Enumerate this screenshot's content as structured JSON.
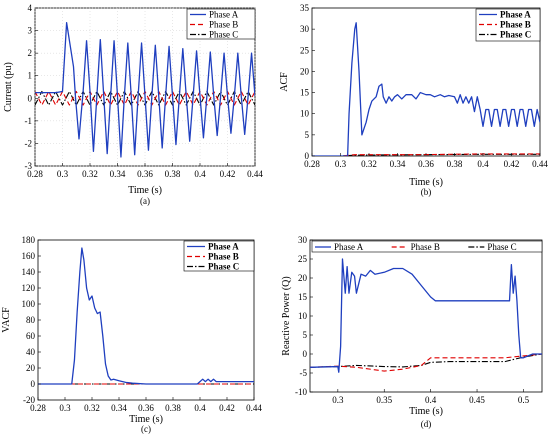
{
  "chart_data": [
    {
      "panel": "(a)",
      "type": "line",
      "xlabel": "Time (s)",
      "ylabel": "Current (pu)",
      "caption": "(a)",
      "xlim": [
        0.28,
        0.44
      ],
      "ylim": [
        -3,
        4
      ],
      "xticks": [
        "0.28",
        "0.3",
        "0.32",
        "0.34",
        "0.36",
        "0.38",
        "0.4",
        "0.42",
        "0.44"
      ],
      "yticks": [
        "-3",
        "-2",
        "-1",
        "0",
        "1",
        "2",
        "3",
        "4"
      ],
      "legend": [
        "Phase A",
        "Phase B",
        "Phase C"
      ],
      "legend_position": "top-right",
      "series": [
        {
          "name": "Phase A",
          "color": "#1f3fbf",
          "style": "solid",
          "x": [
            0.28,
            0.295,
            0.3,
            0.303,
            0.308,
            0.3095,
            0.312,
            0.315,
            0.3175,
            0.32,
            0.3225,
            0.325,
            0.3275,
            0.33,
            0.3325,
            0.335,
            0.3375,
            0.34,
            0.3425,
            0.345,
            0.3475,
            0.35,
            0.3525,
            0.355,
            0.3575,
            0.36,
            0.3625,
            0.365,
            0.3675,
            0.37,
            0.3725,
            0.375,
            0.3775,
            0.38,
            0.3825,
            0.385,
            0.3875,
            0.39,
            0.3925,
            0.395,
            0.3975,
            0.4,
            0.4025,
            0.405,
            0.4075,
            0.41,
            0.4125,
            0.415,
            0.4175,
            0.42,
            0.4225,
            0.425,
            0.4275,
            0.43,
            0.4325,
            0.435,
            0.4375,
            0.44
          ],
          "y": [
            0.25,
            0.25,
            0.3,
            3.35,
            1.4,
            0,
            -1.8,
            0.3,
            2.55,
            0.3,
            -2.35,
            0.1,
            2.6,
            0.1,
            -2.45,
            0.1,
            2.55,
            0.1,
            -2.6,
            0.1,
            2.45,
            0.1,
            -2.5,
            0.1,
            2.45,
            0.1,
            -2.3,
            0.1,
            2.35,
            0.1,
            -2.2,
            0.1,
            2.3,
            0.1,
            -2.05,
            0.1,
            2.2,
            0.1,
            -1.9,
            0.1,
            2.1,
            0.1,
            -1.75,
            0.1,
            2.05,
            0.1,
            -1.65,
            0.1,
            2.0,
            0.1,
            -1.55,
            0.1,
            2.0,
            0.1,
            -1.6,
            0.1,
            2.0,
            0.1
          ]
        },
        {
          "name": "Phase B",
          "color": "#e00000",
          "style": "dashed",
          "x": [
            0.28,
            0.2825,
            0.285,
            0.2875,
            0.29,
            0.2925,
            0.295,
            0.2975,
            0.3,
            0.3025,
            0.305,
            0.3075,
            0.31,
            0.3125,
            0.315,
            0.3175,
            0.32,
            0.3225,
            0.325,
            0.3275,
            0.33,
            0.3325,
            0.335,
            0.3375,
            0.34,
            0.3425,
            0.345,
            0.3475,
            0.35,
            0.3525,
            0.355,
            0.3575,
            0.36,
            0.3625,
            0.365,
            0.3675,
            0.37,
            0.3725,
            0.375,
            0.3775,
            0.38,
            0.3825,
            0.385,
            0.3875,
            0.39,
            0.3925,
            0.395,
            0.3975,
            0.4,
            0.4025,
            0.405,
            0.4075,
            0.41,
            0.4125,
            0.415,
            0.4175,
            0.42,
            0.4225,
            0.425,
            0.4275,
            0.43,
            0.4325,
            0.435,
            0.4375,
            0.44
          ],
          "y": [
            0.3,
            0,
            -0.3,
            0,
            0.3,
            0,
            -0.3,
            0,
            0.3,
            0,
            -0.3,
            0,
            0.3,
            0,
            -0.3,
            0,
            0.3,
            0,
            -0.3,
            0,
            0.3,
            0,
            -0.3,
            0,
            0.3,
            0,
            -0.3,
            0,
            0.3,
            0,
            -0.3,
            0,
            0.3,
            0,
            -0.3,
            0,
            0.3,
            0,
            -0.3,
            0,
            0.3,
            0,
            -0.3,
            0,
            0.3,
            0,
            -0.3,
            0,
            0.3,
            0,
            -0.3,
            0,
            0.3,
            0,
            -0.3,
            0,
            0.3,
            0,
            -0.3,
            0,
            0.3,
            0,
            -0.3,
            0,
            0.3
          ]
        },
        {
          "name": "Phase C",
          "color": "#000000",
          "style": "dashdot",
          "x": [
            0.28,
            0.2825,
            0.285,
            0.2875,
            0.29,
            0.2925,
            0.295,
            0.2975,
            0.3,
            0.3025,
            0.305,
            0.3075,
            0.31,
            0.3125,
            0.315,
            0.3175,
            0.32,
            0.3225,
            0.325,
            0.3275,
            0.33,
            0.3325,
            0.335,
            0.3375,
            0.34,
            0.3425,
            0.345,
            0.3475,
            0.35,
            0.3525,
            0.355,
            0.3575,
            0.36,
            0.3625,
            0.365,
            0.3675,
            0.37,
            0.3725,
            0.375,
            0.3775,
            0.38,
            0.3825,
            0.385,
            0.3875,
            0.39,
            0.3925,
            0.395,
            0.3975,
            0.4,
            0.4025,
            0.405,
            0.4075,
            0.41,
            0.4125,
            0.415,
            0.4175,
            0.42,
            0.4225,
            0.425,
            0.4275,
            0.43,
            0.4325,
            0.435,
            0.4375,
            0.44
          ],
          "y": [
            -0.3,
            0,
            0.3,
            0,
            -0.3,
            0,
            0.3,
            0,
            -0.3,
            0,
            0.3,
            0,
            -0.3,
            0,
            0.3,
            0,
            -0.3,
            0,
            0.3,
            0,
            -0.3,
            0,
            0.3,
            0,
            -0.3,
            0,
            0.3,
            0,
            -0.3,
            0,
            0.3,
            0,
            -0.3,
            0,
            0.3,
            0,
            -0.3,
            0,
            0.3,
            0,
            -0.3,
            0,
            0.3,
            0,
            -0.3,
            0,
            0.3,
            0,
            -0.3,
            0,
            0.3,
            0,
            -0.3,
            0,
            0.3,
            0,
            -0.3,
            0,
            0.3,
            0,
            -0.3,
            0,
            0.3,
            0,
            -0.3
          ]
        }
      ]
    },
    {
      "panel": "(b)",
      "type": "line",
      "xlabel": "Time (s)",
      "ylabel": "ACF",
      "caption": "(b)",
      "xlim": [
        0.28,
        0.44
      ],
      "ylim": [
        0,
        35
      ],
      "xticks": [
        "0.28",
        "0.3",
        "0.32",
        "0.34",
        "0.36",
        "0.38",
        "0.4",
        "0.42",
        "0.44"
      ],
      "yticks": [
        "0",
        "5",
        "10",
        "15",
        "20",
        "25",
        "30",
        "35"
      ],
      "legend": [
        "Phase A",
        "Phase B",
        "Phase C"
      ],
      "legend_position": "top-right",
      "series": [
        {
          "name": "Phase A",
          "color": "#1f3fbf",
          "style": "solid",
          "x": [
            0.28,
            0.305,
            0.306,
            0.308,
            0.31,
            0.311,
            0.313,
            0.315,
            0.318,
            0.32,
            0.322,
            0.325,
            0.327,
            0.329,
            0.33,
            0.332,
            0.334,
            0.336,
            0.338,
            0.34,
            0.343,
            0.346,
            0.35,
            0.353,
            0.356,
            0.36,
            0.363,
            0.366,
            0.37,
            0.373,
            0.376,
            0.38,
            0.382,
            0.384,
            0.386,
            0.388,
            0.39,
            0.392,
            0.394,
            0.396,
            0.398,
            0.4,
            0.402,
            0.404,
            0.406,
            0.408,
            0.41,
            0.412,
            0.414,
            0.416,
            0.418,
            0.42,
            0.422,
            0.424,
            0.426,
            0.428,
            0.43,
            0.432,
            0.434,
            0.436,
            0.438,
            0.44
          ],
          "y": [
            0,
            0,
            10,
            22,
            30,
            31.5,
            20,
            5,
            8,
            11,
            13,
            14,
            16.5,
            17,
            14,
            12.5,
            14,
            13,
            14,
            14.5,
            13.5,
            14.5,
            14.5,
            13.5,
            15,
            14.5,
            14.5,
            14,
            14.5,
            14,
            14.3,
            14,
            12.5,
            14.5,
            12.5,
            14,
            12.5,
            14,
            10.5,
            14,
            11,
            7,
            11,
            11,
            7,
            11,
            11,
            7,
            11,
            11,
            7,
            11,
            11,
            7,
            11,
            11,
            7,
            11,
            11,
            7,
            11,
            8
          ]
        },
        {
          "name": "Phase B",
          "color": "#e00000",
          "style": "dashed",
          "x": [
            0.28,
            0.3,
            0.31,
            0.35,
            0.4,
            0.44
          ],
          "y": [
            0,
            0,
            0.3,
            0.3,
            0.5,
            0.5
          ]
        },
        {
          "name": "Phase C",
          "color": "#000000",
          "style": "dashdot",
          "x": [
            0.28,
            0.3,
            0.31,
            0.35,
            0.4,
            0.44
          ],
          "y": [
            0,
            0,
            0.2,
            0.3,
            0.4,
            0.4
          ]
        }
      ]
    },
    {
      "panel": "(c)",
      "type": "line",
      "xlabel": "Time (s)",
      "ylabel": "VACF",
      "caption": "(c)",
      "xlim": [
        0.28,
        0.44
      ],
      "ylim": [
        -20,
        180
      ],
      "xticks": [
        "0.28",
        "0.3",
        "0.32",
        "0.34",
        "0.36",
        "0.38",
        "0.4",
        "0.42",
        "0.44"
      ],
      "yticks": [
        "-20",
        "0",
        "20",
        "40",
        "60",
        "80",
        "100",
        "120",
        "140",
        "160",
        "180"
      ],
      "legend": [
        "Phase A",
        "Phase B",
        "Phase C"
      ],
      "legend_position": "top-right",
      "series": [
        {
          "name": "Phase A",
          "color": "#1f3fbf",
          "style": "solid",
          "x": [
            0.28,
            0.305,
            0.307,
            0.309,
            0.311,
            0.3125,
            0.314,
            0.316,
            0.318,
            0.32,
            0.322,
            0.324,
            0.326,
            0.328,
            0.33,
            0.332,
            0.334,
            0.336,
            0.338,
            0.34,
            0.345,
            0.35,
            0.36,
            0.38,
            0.398,
            0.4,
            0.402,
            0.404,
            0.406,
            0.408,
            0.41,
            0.412,
            0.415,
            0.42,
            0.44
          ],
          "y": [
            0,
            0,
            30,
            90,
            140,
            170,
            155,
            120,
            105,
            110,
            95,
            88,
            90,
            60,
            25,
            10,
            5,
            6,
            5,
            4,
            2,
            1,
            0,
            0,
            0,
            3,
            6,
            3,
            6,
            3,
            6,
            3,
            3,
            3,
            3
          ]
        },
        {
          "name": "Phase B",
          "color": "#e00000",
          "style": "dashed",
          "x": [
            0.28,
            0.44
          ],
          "y": [
            0,
            0
          ]
        },
        {
          "name": "Phase C",
          "color": "#000000",
          "style": "dashdot",
          "x": [
            0.28,
            0.44
          ],
          "y": [
            0,
            0
          ]
        }
      ]
    },
    {
      "panel": "(d)",
      "type": "line",
      "xlabel": "Time (s)",
      "ylabel": "Reactive Power (Q)",
      "caption": "(d)",
      "xlim": [
        0.27,
        0.52
      ],
      "ylim": [
        -10,
        30
      ],
      "xticks": [
        "0.3",
        "0.35",
        "0.4",
        "0.45",
        "0.5"
      ],
      "yticks": [
        "-10",
        "-5",
        "0",
        "5",
        "10",
        "15",
        "20",
        "25",
        "30"
      ],
      "legend": [
        "Phase A",
        "Phase B",
        "Phase C"
      ],
      "legend_position": "top",
      "series": [
        {
          "name": "Phase A",
          "color": "#1f3fbf",
          "style": "solid",
          "x": [
            0.27,
            0.3,
            0.301,
            0.303,
            0.305,
            0.308,
            0.31,
            0.312,
            0.315,
            0.318,
            0.32,
            0.325,
            0.33,
            0.335,
            0.34,
            0.35,
            0.36,
            0.37,
            0.38,
            0.39,
            0.4,
            0.405,
            0.41,
            0.42,
            0.43,
            0.44,
            0.45,
            0.46,
            0.47,
            0.48,
            0.485,
            0.487,
            0.489,
            0.491,
            0.493,
            0.495,
            0.497,
            0.5,
            0.505,
            0.51,
            0.52
          ],
          "y": [
            -3.5,
            -3.3,
            -4.8,
            2,
            25,
            16,
            23,
            16,
            21.5,
            20.5,
            16,
            21,
            20.5,
            22,
            21,
            21.5,
            22.5,
            22.5,
            21,
            18,
            15,
            14,
            14,
            14,
            14,
            14,
            14,
            14,
            14,
            14,
            14,
            23.5,
            16,
            20.5,
            14,
            5,
            -1,
            -1,
            -0.5,
            0,
            0
          ]
        },
        {
          "name": "Phase B",
          "color": "#e00000",
          "style": "dashed",
          "x": [
            0.27,
            0.3,
            0.32,
            0.35,
            0.37,
            0.39,
            0.4,
            0.42,
            0.45,
            0.48,
            0.5,
            0.52
          ],
          "y": [
            -3.5,
            -3.2,
            -3.5,
            -4.5,
            -4,
            -3,
            -1,
            -1,
            -1,
            -1,
            -0.5,
            0
          ]
        },
        {
          "name": "Phase C",
          "color": "#000000",
          "style": "dashdot",
          "x": [
            0.27,
            0.3,
            0.32,
            0.35,
            0.37,
            0.39,
            0.4,
            0.42,
            0.45,
            0.48,
            0.5,
            0.52
          ],
          "y": [
            -3.5,
            -3.3,
            -3,
            -3.3,
            -3.4,
            -3,
            -2.2,
            -2,
            -2,
            -2,
            -0.8,
            0
          ]
        }
      ]
    }
  ]
}
